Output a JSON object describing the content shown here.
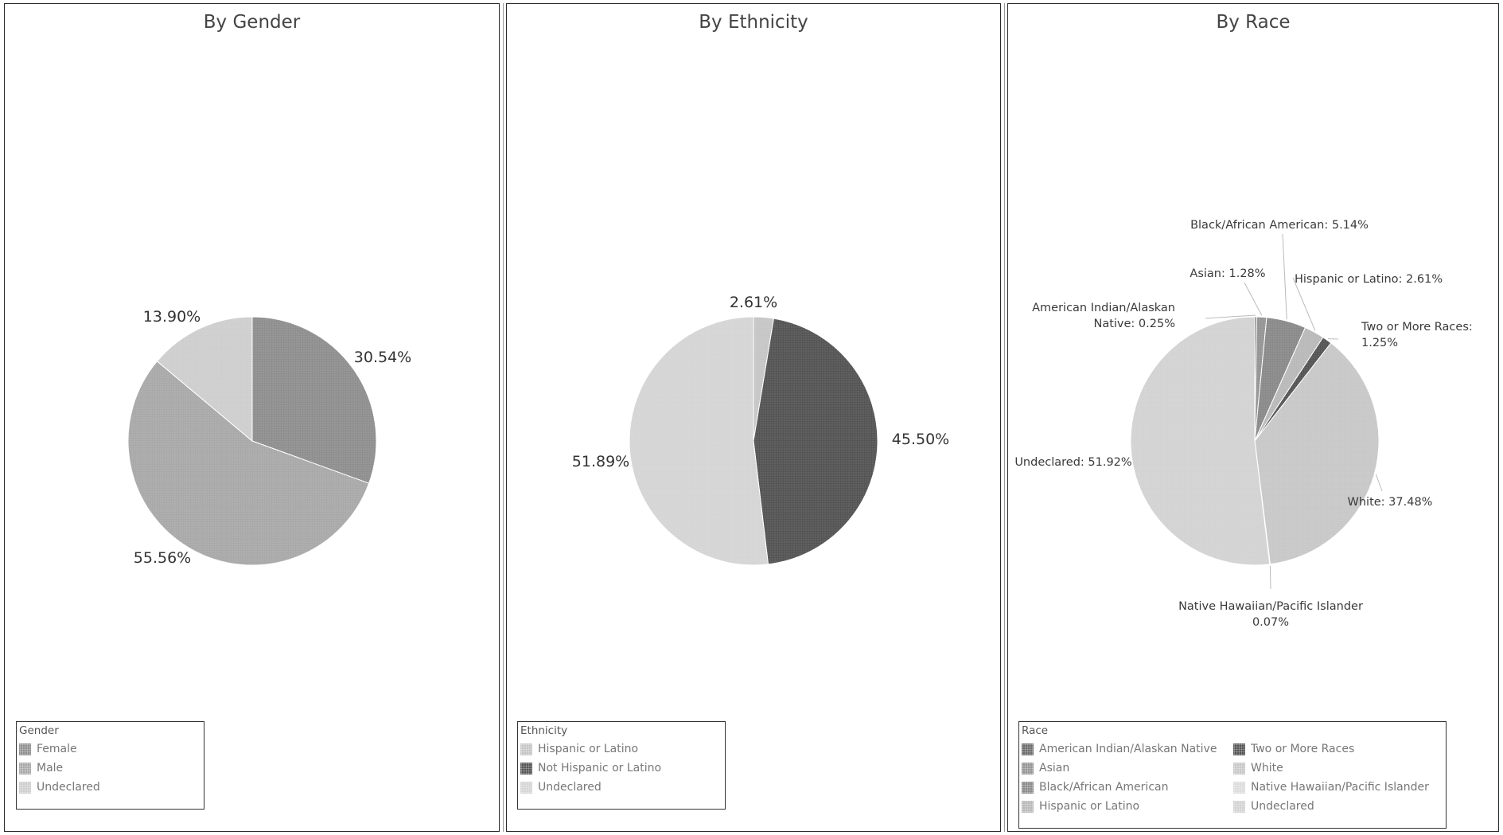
{
  "chart_data": [
    {
      "type": "pie",
      "title": "By Gender",
      "legend_title": "Gender",
      "legend_placement": "bottom-left",
      "slices": [
        {
          "label": "Female",
          "value": 30.54,
          "value_label": "30.54%",
          "color": "#8f8f8f"
        },
        {
          "label": "Male",
          "value": 55.56,
          "value_label": "55.56%",
          "color": "#a9a9a9"
        },
        {
          "label": "Undeclared",
          "value": 13.9,
          "value_label": "13.90%",
          "color": "#cecece"
        }
      ]
    },
    {
      "type": "pie",
      "title": "By Ethnicity",
      "legend_title": "Ethnicity",
      "legend_placement": "bottom-left",
      "slices": [
        {
          "label": "Hispanic or Latino",
          "value": 2.61,
          "value_label": "2.61%",
          "color": "#c6c6c6"
        },
        {
          "label": "Not Hispanic or Latino",
          "value": 45.5,
          "value_label": "45.50%",
          "color": "#555555"
        },
        {
          "label": "Undeclared",
          "value": 51.89,
          "value_label": "51.89%",
          "color": "#d5d5d5"
        }
      ]
    },
    {
      "type": "pie",
      "title": "By Race",
      "legend_title": "Race",
      "legend_placement": "bottom-left",
      "slices": [
        {
          "label": "American Indian/Alaskan Native",
          "value": 0.25,
          "value_label": "American Indian/Alaskan Native: 0.25%",
          "color": "#6c6c6c"
        },
        {
          "label": "Asian",
          "value": 1.28,
          "value_label": "Asian: 1.28%",
          "color": "#959595"
        },
        {
          "label": "Black/African American",
          "value": 5.14,
          "value_label": "Black/African American: 5.14%",
          "color": "#8a8a8a"
        },
        {
          "label": "Hispanic or Latino",
          "value": 2.61,
          "value_label": "Hispanic or Latino: 2.61%",
          "color": "#b9b9b9"
        },
        {
          "label": "Two or More Races",
          "value": 1.25,
          "value_label": "Two or More Races: 1.25%",
          "color": "#555555"
        },
        {
          "label": "White",
          "value": 37.48,
          "value_label": "White: 37.48%",
          "color": "#c8c8c8"
        },
        {
          "label": "Native Hawaiian/Pacific Islander",
          "value": 0.07,
          "value_label": "Native Hawaiian/Pacific Islander: 0.07%",
          "color": "#dcdcdc"
        },
        {
          "label": "Undeclared",
          "value": 51.92,
          "value_label": "Undeclared: 51.92%",
          "color": "#d3d3d3"
        }
      ]
    }
  ]
}
